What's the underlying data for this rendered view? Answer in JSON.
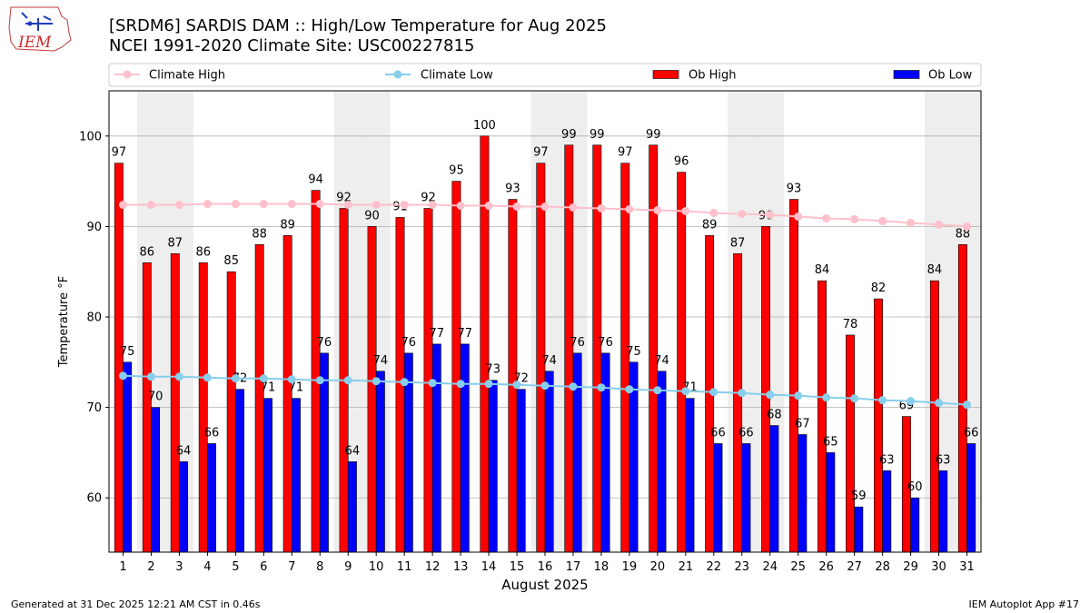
{
  "header": {
    "logo_text": "IEM",
    "title_line1": "[SRDM6] SARDIS DAM :: High/Low Temperature for Aug 2025",
    "title_line2": "NCEI 1991-2020 Climate Site: USC00227815"
  },
  "footer": {
    "left": "Generated at 31 Dec 2025 12:21 AM CST in 0.46s",
    "right": "IEM Autoplot App #17"
  },
  "colors": {
    "ob_high": "#ff0000",
    "ob_low": "#0000ff",
    "climate_high": "#ffc0cb",
    "climate_low": "#87ceeb",
    "weekend_shade": "#eeeeee"
  },
  "chart_data": {
    "type": "bar",
    "xlabel": "August 2025",
    "ylabel": "Temperature °F",
    "ylim": [
      54,
      105
    ],
    "yticks": [
      60,
      70,
      80,
      90,
      100
    ],
    "grid": true,
    "legend_position": "top",
    "categories": [
      "1",
      "2",
      "3",
      "4",
      "5",
      "6",
      "7",
      "8",
      "9",
      "10",
      "11",
      "12",
      "13",
      "14",
      "15",
      "16",
      "17",
      "18",
      "19",
      "20",
      "21",
      "22",
      "23",
      "24",
      "25",
      "26",
      "27",
      "28",
      "29",
      "30",
      "31"
    ],
    "weekend_days": [
      2,
      3,
      9,
      10,
      16,
      17,
      23,
      24,
      30,
      31
    ],
    "series": [
      {
        "name": "Ob High",
        "kind": "bar",
        "values": [
          97,
          86,
          87,
          86,
          85,
          88,
          89,
          94,
          92,
          90,
          91,
          92,
          95,
          100,
          93,
          97,
          99,
          99,
          97,
          99,
          96,
          89,
          87,
          90,
          93,
          84,
          78,
          82,
          69,
          84,
          88
        ]
      },
      {
        "name": "Ob Low",
        "kind": "bar",
        "values": [
          75,
          70,
          64,
          66,
          72,
          71,
          71,
          76,
          64,
          74,
          76,
          77,
          77,
          73,
          72,
          74,
          76,
          76,
          75,
          74,
          71,
          66,
          66,
          68,
          67,
          65,
          59,
          63,
          60,
          63,
          66
        ]
      },
      {
        "name": "Climate High",
        "kind": "line",
        "values": [
          92.4,
          92.4,
          92.4,
          92.5,
          92.5,
          92.5,
          92.5,
          92.5,
          92.4,
          92.4,
          92.4,
          92.4,
          92.3,
          92.3,
          92.2,
          92.2,
          92.1,
          92.0,
          91.9,
          91.8,
          91.7,
          91.5,
          91.4,
          91.3,
          91.1,
          90.9,
          90.8,
          90.6,
          90.4,
          90.2,
          90.0
        ]
      },
      {
        "name": "Climate Low",
        "kind": "line",
        "values": [
          73.5,
          73.4,
          73.4,
          73.3,
          73.2,
          73.2,
          73.1,
          73.0,
          73.0,
          72.9,
          72.8,
          72.7,
          72.6,
          72.6,
          72.5,
          72.4,
          72.3,
          72.2,
          72.0,
          71.9,
          71.8,
          71.7,
          71.6,
          71.4,
          71.3,
          71.1,
          71.0,
          70.8,
          70.7,
          70.5,
          70.3
        ]
      }
    ]
  }
}
